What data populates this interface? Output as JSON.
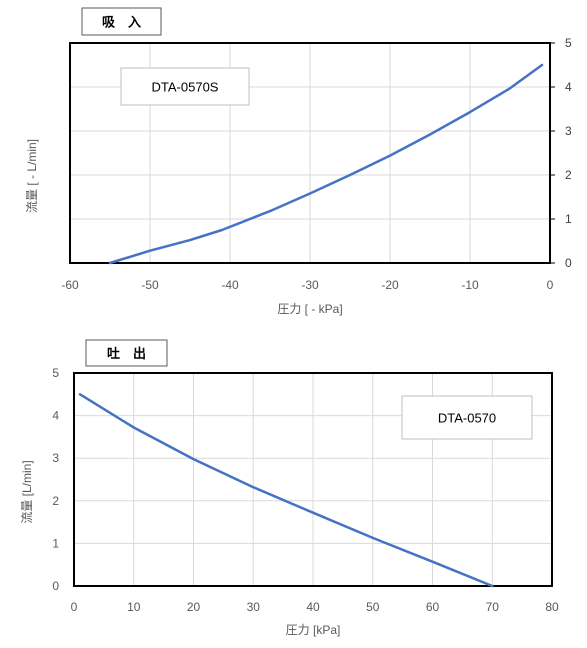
{
  "colors": {
    "line": "#4472c4",
    "grid": "#d9d9d9",
    "frame": "#000000",
    "box_border": "#bfbfbf"
  },
  "chart_data": [
    {
      "type": "line",
      "tag": "吸　入",
      "model": "DTA-0570S",
      "xlabel": "圧力 [ - kPa]",
      "ylabel": "流量 [ - L/min]",
      "xlim": [
        -60,
        0
      ],
      "ylim": [
        0,
        5
      ],
      "x_ticks": [
        "-60",
        "-50",
        "-40",
        "-30",
        "-20",
        "-10",
        "0"
      ],
      "y_ticks": [
        "0",
        "1",
        "2",
        "3",
        "4",
        "5"
      ],
      "y_axis_side": "right",
      "grid": true,
      "series": [
        {
          "x": [
            -55,
            -50,
            -45,
            -41,
            -35,
            -30,
            -25,
            -20,
            -15,
            -10,
            -5,
            -1
          ],
          "y": [
            0,
            0.28,
            0.52,
            0.75,
            1.18,
            1.58,
            2.0,
            2.44,
            2.92,
            3.43,
            3.97,
            4.5
          ]
        }
      ]
    },
    {
      "type": "line",
      "tag": "吐　出",
      "model": "DTA-0570",
      "xlabel": "圧力 [kPa]",
      "ylabel": "流量 [L/min]",
      "xlim": [
        0,
        80
      ],
      "ylim": [
        0,
        5
      ],
      "x_ticks": [
        "0",
        "10",
        "20",
        "30",
        "40",
        "50",
        "60",
        "70",
        "80"
      ],
      "y_ticks": [
        "0",
        "1",
        "2",
        "3",
        "4",
        "5"
      ],
      "y_axis_side": "left",
      "grid": true,
      "series": [
        {
          "x": [
            1,
            10,
            20,
            30,
            40,
            50,
            60,
            70
          ],
          "y": [
            4.5,
            3.72,
            2.98,
            2.32,
            1.72,
            1.13,
            0.57,
            0
          ]
        }
      ]
    }
  ]
}
